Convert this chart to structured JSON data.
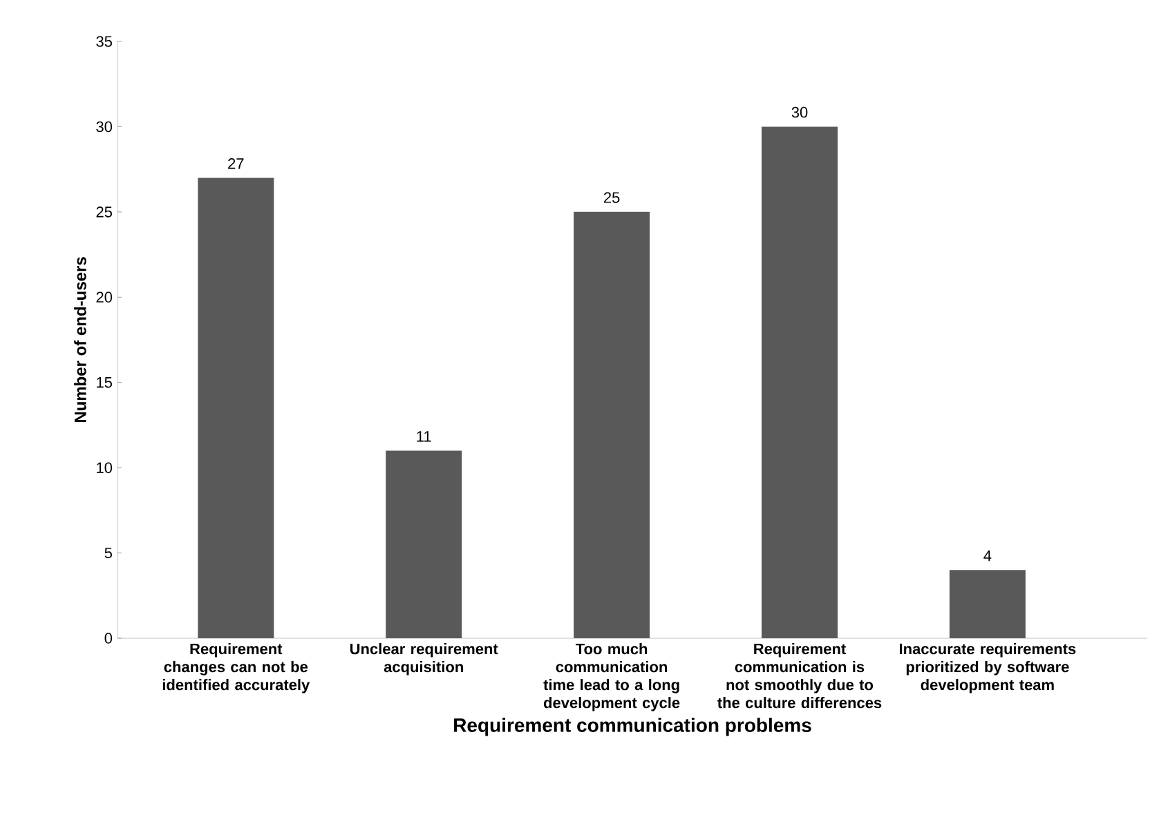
{
  "chart_data": {
    "type": "bar",
    "xlabel": "Requirement communication problems",
    "ylabel": "Number of end-users",
    "categories": [
      "Requirement changes can not be identified accurately",
      "Unclear requirement acquisition",
      "Too much communication time lead to a long development cycle",
      "Requirement communication is not smoothly due to the culture differences",
      "Inaccurate requirements prioritized by software development team"
    ],
    "values": [
      27,
      11,
      25,
      30,
      4
    ],
    "color": "#595959",
    "ylim": [
      0,
      35
    ],
    "yticks": [
      0,
      5,
      10,
      15,
      20,
      25,
      30,
      35
    ],
    "data_labels": true,
    "grid": false
  }
}
